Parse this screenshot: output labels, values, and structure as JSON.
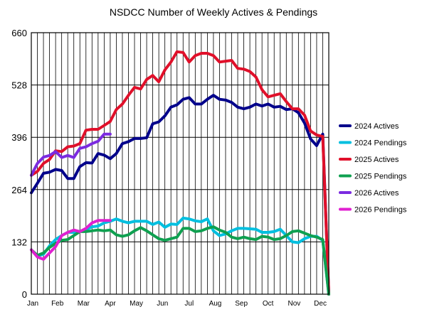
{
  "chart_data": {
    "type": "line",
    "title": "NSDCC Number of Weekly Actives & Pendings",
    "xlabel": "",
    "ylabel": "",
    "ylim": [
      0,
      660
    ],
    "yticks": [
      "0",
      "132",
      "264",
      "396",
      "528",
      "660"
    ],
    "xtick_labels": [
      {
        "label": "Jan",
        "week": 0
      },
      {
        "label": "Feb",
        "week": 4.3
      },
      {
        "label": "Mar",
        "week": 8.6
      },
      {
        "label": "Apr",
        "week": 13
      },
      {
        "label": "May",
        "week": 17.3
      },
      {
        "label": "Jun",
        "week": 21.6
      },
      {
        "label": "Jul",
        "week": 26
      },
      {
        "label": "Aug",
        "week": 30.3
      },
      {
        "label": "Sep",
        "week": 34.6
      },
      {
        "label": "Oct",
        "week": 39
      },
      {
        "label": "Nov",
        "week": 43.3
      },
      {
        "label": "Dec",
        "week": 47.6
      }
    ],
    "grid": true,
    "legend_position": "right",
    "series": [
      {
        "name": "2024 Actives",
        "color": "#00008B",
        "x": [
          0,
          1,
          2,
          3,
          4,
          5,
          6,
          7,
          8,
          9,
          10,
          11,
          12,
          13,
          14,
          15,
          16,
          17,
          18,
          19,
          20,
          21,
          22,
          23,
          24,
          25,
          26,
          27,
          28,
          29,
          30,
          31,
          32,
          33,
          34,
          35,
          36,
          37,
          38,
          39,
          40,
          41,
          42,
          43,
          44,
          45,
          46,
          47,
          48,
          49
        ],
        "values": [
          256,
          280,
          305,
          308,
          315,
          312,
          292,
          292,
          322,
          332,
          331,
          355,
          351,
          342,
          355,
          380,
          385,
          393,
          393,
          395,
          430,
          435,
          450,
          472,
          478,
          492,
          496,
          480,
          480,
          492,
          502,
          492,
          490,
          484,
          472,
          468,
          472,
          480,
          475,
          480,
          472,
          474,
          466,
          468,
          458,
          432,
          392,
          375,
          404,
          0
        ]
      },
      {
        "name": "2024 Pendings",
        "color": "#00BFDF",
        "x": [
          0,
          1,
          2,
          3,
          4,
          5,
          6,
          7,
          8,
          9,
          10,
          11,
          12,
          13,
          14,
          15,
          16,
          17,
          18,
          19,
          20,
          21,
          22,
          23,
          24,
          25,
          26,
          27,
          28,
          29,
          30,
          31,
          32,
          33,
          34,
          35,
          36,
          37,
          38,
          39,
          40,
          41,
          42,
          43,
          44,
          45,
          46,
          47,
          48,
          49
        ],
        "values": [
          112,
          96,
          101,
          122,
          138,
          148,
          156,
          156,
          159,
          163,
          170,
          172,
          180,
          184,
          190,
          184,
          180,
          184,
          184,
          184,
          176,
          182,
          169,
          177,
          176,
          192,
          190,
          185,
          183,
          190,
          160,
          148,
          152,
          160,
          166,
          166,
          165,
          164,
          156,
          156,
          158,
          164,
          148,
          132,
          130,
          140,
          146,
          146,
          136,
          0
        ]
      },
      {
        "name": "2025 Actives",
        "color": "#E0102A",
        "x": [
          0,
          1,
          2,
          3,
          4,
          5,
          6,
          7,
          8,
          9,
          10,
          11,
          12,
          13,
          14,
          15,
          16,
          17,
          18,
          19,
          20,
          21,
          22,
          23,
          24,
          25,
          26,
          27,
          28,
          29,
          30,
          31,
          32,
          33,
          34,
          35,
          36,
          37,
          38,
          39,
          40,
          41,
          42,
          43,
          44,
          45,
          46,
          47,
          48,
          49
        ],
        "values": [
          300,
          310,
          330,
          340,
          362,
          360,
          372,
          374,
          380,
          414,
          416,
          416,
          426,
          436,
          466,
          480,
          502,
          522,
          518,
          542,
          552,
          536,
          566,
          586,
          612,
          610,
          586,
          602,
          608,
          608,
          602,
          586,
          588,
          590,
          570,
          568,
          562,
          548,
          516,
          498,
          502,
          506,
          486,
          468,
          468,
          452,
          412,
          402,
          398,
          0
        ]
      },
      {
        "name": "2025 Pendings",
        "color": "#0FA050",
        "x": [
          0,
          1,
          2,
          3,
          4,
          5,
          6,
          7,
          8,
          9,
          10,
          11,
          12,
          13,
          14,
          15,
          16,
          17,
          18,
          19,
          20,
          21,
          22,
          23,
          24,
          25,
          26,
          27,
          28,
          29,
          30,
          31,
          32,
          33,
          34,
          35,
          36,
          37,
          38,
          39,
          40,
          41,
          42,
          43,
          44,
          45,
          46,
          47,
          48,
          49
        ],
        "values": [
          112,
          98,
          104,
          118,
          128,
          136,
          138,
          148,
          158,
          158,
          160,
          162,
          160,
          162,
          150,
          146,
          150,
          160,
          168,
          160,
          150,
          140,
          136,
          140,
          144,
          166,
          166,
          158,
          160,
          166,
          170,
          162,
          156,
          144,
          140,
          144,
          140,
          138,
          146,
          144,
          138,
          140,
          148,
          158,
          160,
          154,
          148,
          144,
          138,
          0
        ]
      },
      {
        "name": "2026 Actives",
        "color": "#7B2BE0",
        "x": [
          0,
          1,
          2,
          3,
          4,
          5,
          6,
          7,
          8,
          9,
          10,
          11,
          12,
          13
        ],
        "values": [
          300,
          330,
          346,
          350,
          360,
          345,
          350,
          345,
          368,
          372,
          380,
          386,
          404,
          404
        ]
      },
      {
        "name": "2026 Pendings",
        "color": "#E020D0",
        "x": [
          0,
          1,
          2,
          3,
          4,
          5,
          6,
          7,
          8,
          9,
          10,
          11,
          12,
          13
        ],
        "values": [
          112,
          94,
          88,
          104,
          120,
          148,
          156,
          162,
          158,
          166,
          180,
          186,
          186,
          186
        ]
      }
    ]
  }
}
